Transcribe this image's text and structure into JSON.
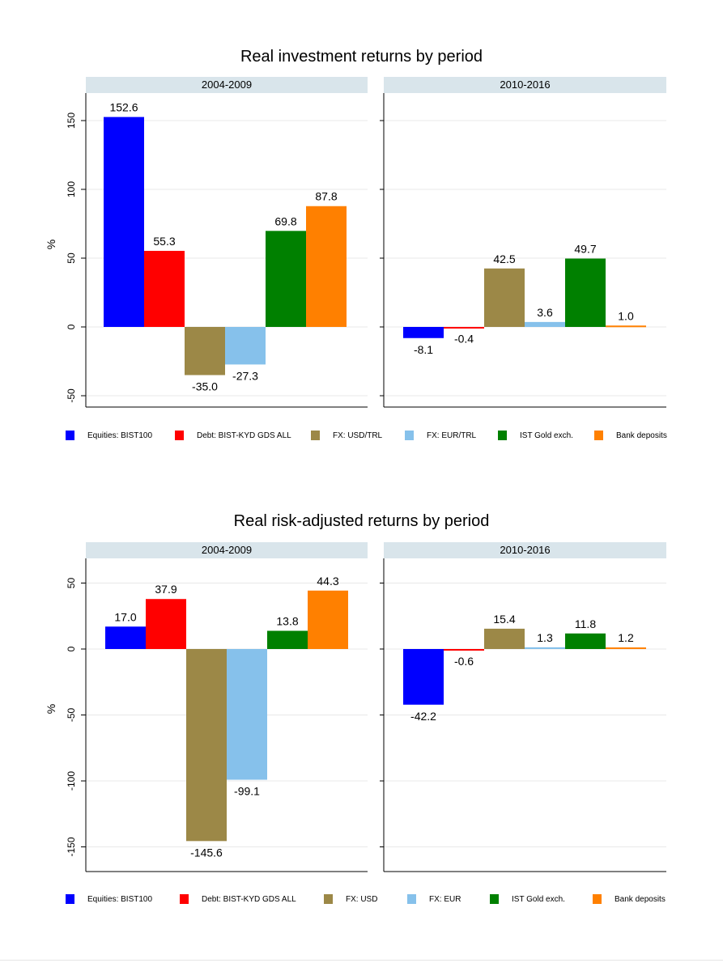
{
  "figures": [
    {
      "title": "Real investment returns by period",
      "ylabel": "%",
      "panels": [
        "2004-2009",
        "2010-2016"
      ],
      "legend": [
        {
          "label": "Equities: BIST100",
          "color": "#0000ff"
        },
        {
          "label": "Debt: BIST-KYD GDS ALL",
          "color": "#ff0000"
        },
        {
          "label": "FX: USD/TRL",
          "color": "#9c8847"
        },
        {
          "label": "FX: EUR/TRL",
          "color": "#86c1eb"
        },
        {
          "label": "IST Gold exch.",
          "color": "#008000"
        },
        {
          "label": "Bank deposits",
          "color": "#ff8000"
        }
      ]
    },
    {
      "title": "Real risk-adjusted returns by period",
      "ylabel": "%",
      "panels": [
        "2004-2009",
        "2010-2016"
      ],
      "legend": [
        {
          "label": "Equities: BIST100",
          "color": "#0000ff"
        },
        {
          "label": "Debt: BIST-KYD GDS ALL",
          "color": "#ff0000"
        },
        {
          "label": "FX: USD",
          "color": "#9c8847"
        },
        {
          "label": "FX: EUR",
          "color": "#86c1eb"
        },
        {
          "label": "IST Gold exch.",
          "color": "#008000"
        },
        {
          "label": "Bank deposits",
          "color": "#ff8000"
        }
      ]
    }
  ],
  "chart_data": [
    {
      "type": "bar",
      "title": "Real investment returns by period",
      "ylabel": "%",
      "yticks": [
        -50,
        0,
        50,
        100,
        150
      ],
      "ylim": [
        -58,
        162
      ],
      "grid": true,
      "legend_position": "bottom",
      "facets": [
        "2004-2009",
        "2010-2016"
      ],
      "series": [
        {
          "name": "Equities: BIST100",
          "color": "#0000ff",
          "values": [
            152.6,
            -8.1
          ],
          "labels": [
            "152.6",
            "-8.1"
          ]
        },
        {
          "name": "Debt: BIST-KYD GDS ALL",
          "color": "#ff0000",
          "values": [
            55.3,
            -0.4
          ],
          "labels": [
            "55.3",
            "-0.4"
          ]
        },
        {
          "name": "FX: USD/TRL",
          "color": "#9c8847",
          "values": [
            -35.0,
            42.5
          ],
          "labels": [
            "-35.0",
            "42.5"
          ]
        },
        {
          "name": "FX: EUR/TRL",
          "color": "#86c1eb",
          "values": [
            -27.3,
            3.6
          ],
          "labels": [
            "-27.3",
            "3.6"
          ]
        },
        {
          "name": "IST Gold exch.",
          "color": "#008000",
          "values": [
            69.8,
            49.7
          ],
          "labels": [
            "69.8",
            "49.7"
          ]
        },
        {
          "name": "Bank deposits",
          "color": "#ff8000",
          "values": [
            87.8,
            1.0
          ],
          "labels": [
            "87.8",
            "1.0"
          ]
        }
      ]
    },
    {
      "type": "bar",
      "title": "Real risk-adjusted returns by period",
      "ylabel": "%",
      "yticks": [
        -150,
        -100,
        -50,
        0,
        50
      ],
      "ylim": [
        -168,
        70
      ],
      "grid": true,
      "legend_position": "bottom",
      "facets": [
        "2004-2009",
        "2010-2016"
      ],
      "series": [
        {
          "name": "Equities: BIST100",
          "color": "#0000ff",
          "values": [
            17.0,
            -42.2
          ],
          "labels": [
            "17.0",
            "-42.2"
          ]
        },
        {
          "name": "Debt: BIST-KYD GDS ALL",
          "color": "#ff0000",
          "values": [
            37.9,
            -0.6
          ],
          "labels": [
            "37.9",
            "-0.6"
          ]
        },
        {
          "name": "FX: USD",
          "color": "#9c8847",
          "values": [
            -145.6,
            15.4
          ],
          "labels": [
            "-145.6",
            "15.4"
          ]
        },
        {
          "name": "FX: EUR",
          "color": "#86c1eb",
          "values": [
            -99.1,
            1.3
          ],
          "labels": [
            "-99.1",
            "1.3"
          ]
        },
        {
          "name": "IST Gold exch.",
          "color": "#008000",
          "values": [
            13.8,
            11.8
          ],
          "labels": [
            "13.8",
            "11.8"
          ]
        },
        {
          "name": "Bank deposits",
          "color": "#ff8000",
          "values": [
            44.3,
            1.2
          ],
          "labels": [
            "44.3",
            "1.2"
          ]
        }
      ]
    }
  ]
}
